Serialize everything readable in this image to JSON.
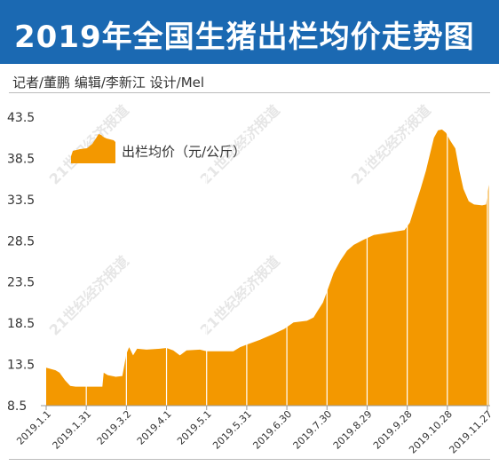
{
  "header": {
    "title": "2019年全国生猪出栏均价走势图",
    "credits": "记者/董鹏  编辑/李新江  设计/Mel"
  },
  "watermark_text": "21世纪经济报道",
  "colors": {
    "title_bg": "#1b69b2",
    "area": "#f39800",
    "grid": "#ffffff",
    "axis": "#999999"
  },
  "chart_data": {
    "type": "area",
    "title": "",
    "legend": "出栏均价（元/公斤）",
    "legend_position": "top-left",
    "x_tick_labels": [
      "2019.1.1",
      "2019.1.31",
      "2019.3.2",
      "2019.4.1",
      "2019.5.1",
      "2019.5.31",
      "2019.6.30",
      "2019.7.30",
      "2019.8.29",
      "2019.9.28",
      "2019.10.28",
      "2019.11.27"
    ],
    "x_tick_days": [
      0,
      30,
      60,
      90,
      120,
      150,
      180,
      210,
      240,
      270,
      300,
      330
    ],
    "y_ticks": [
      8.5,
      13.5,
      18.5,
      23.5,
      28.5,
      33.5,
      38.5,
      43.5
    ],
    "ylim": [
      8.5,
      43.5
    ],
    "xlim_days": [
      0,
      332
    ],
    "series": [
      {
        "name": "出栏均价（元/公斤）",
        "points": [
          [
            0,
            13.1
          ],
          [
            7,
            12.8
          ],
          [
            10,
            12.5
          ],
          [
            14,
            11.6
          ],
          [
            18,
            10.9
          ],
          [
            22,
            10.8
          ],
          [
            30,
            10.8
          ],
          [
            42,
            10.8
          ],
          [
            43,
            12.5
          ],
          [
            46,
            12.2
          ],
          [
            52,
            12.0
          ],
          [
            57,
            12.1
          ],
          [
            60,
            14.8
          ],
          [
            62,
            15.6
          ],
          [
            65,
            14.6
          ],
          [
            68,
            15.4
          ],
          [
            75,
            15.3
          ],
          [
            85,
            15.4
          ],
          [
            90,
            15.5
          ],
          [
            95,
            15.2
          ],
          [
            100,
            14.6
          ],
          [
            105,
            15.2
          ],
          [
            115,
            15.3
          ],
          [
            120,
            15.1
          ],
          [
            140,
            15.1
          ],
          [
            145,
            15.6
          ],
          [
            150,
            15.9
          ],
          [
            160,
            16.5
          ],
          [
            170,
            17.2
          ],
          [
            178,
            17.8
          ],
          [
            185,
            18.6
          ],
          [
            195,
            18.8
          ],
          [
            200,
            19.2
          ],
          [
            203,
            20.0
          ],
          [
            207,
            21.0
          ],
          [
            211,
            22.8
          ],
          [
            215,
            24.6
          ],
          [
            220,
            26.1
          ],
          [
            225,
            27.3
          ],
          [
            230,
            28.0
          ],
          [
            237,
            28.6
          ],
          [
            245,
            29.2
          ],
          [
            260,
            29.6
          ],
          [
            268,
            29.8
          ],
          [
            272,
            30.7
          ],
          [
            276,
            32.8
          ],
          [
            280,
            34.8
          ],
          [
            284,
            37.0
          ],
          [
            287,
            39.0
          ],
          [
            290,
            41.0
          ],
          [
            293,
            41.9
          ],
          [
            296,
            42.0
          ],
          [
            299,
            41.6
          ],
          [
            302,
            40.7
          ],
          [
            306,
            39.7
          ],
          [
            309,
            37.0
          ],
          [
            312,
            34.8
          ],
          [
            316,
            33.3
          ],
          [
            320,
            32.9
          ],
          [
            326,
            32.8
          ],
          [
            329,
            32.9
          ],
          [
            331,
            35.3
          ]
        ]
      }
    ]
  }
}
